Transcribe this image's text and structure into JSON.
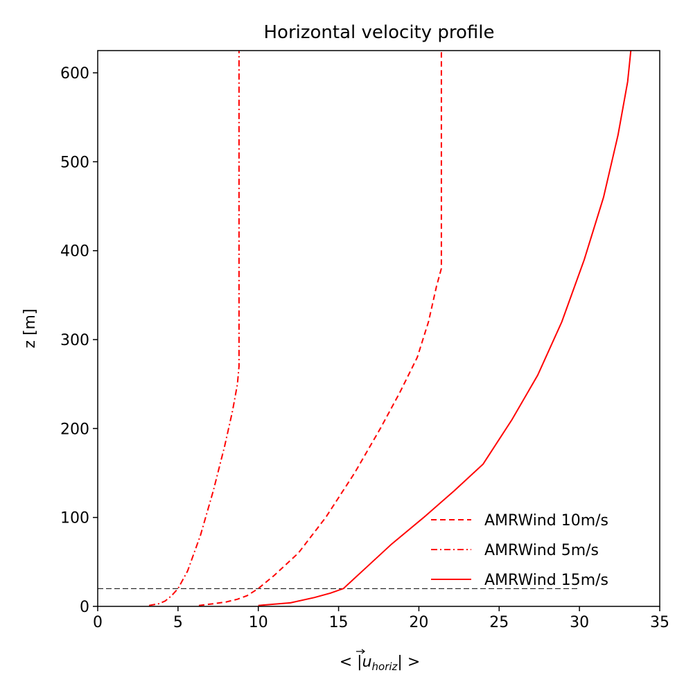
{
  "chart_data": {
    "type": "line",
    "title": "Horizontal velocity profile",
    "xlabel_prefix": "< |",
    "xlabel_vec": "u",
    "xlabel_sub": "horiz",
    "xlabel_suffix": "| >",
    "ylabel": "z [m]",
    "xlim": [
      0,
      35
    ],
    "ylim": [
      0,
      625
    ],
    "xticks": [
      0,
      5,
      10,
      15,
      20,
      25,
      30,
      35
    ],
    "yticks": [
      0,
      100,
      200,
      300,
      400,
      500,
      600
    ],
    "grid": false,
    "legend_position": "lower-right",
    "colors": {
      "series": "#ff0000",
      "reference_line": "#000000"
    },
    "reference_line": {
      "z": 20,
      "x": [
        0,
        30
      ]
    },
    "series": [
      {
        "name": "AMRWind 10m/s",
        "style": "dashed",
        "x": [
          6.3,
          7.2,
          8.0,
          8.7,
          9.3,
          10.0,
          11.0,
          12.5,
          14.2,
          16.0,
          17.6,
          18.8,
          19.9,
          20.6,
          21.1,
          21.4,
          21.4,
          21.4,
          21.4
        ],
        "z": [
          1,
          3,
          5,
          8,
          12,
          20,
          35,
          60,
          100,
          150,
          200,
          240,
          280,
          320,
          360,
          380,
          450,
          550,
          625
        ]
      },
      {
        "name": "AMRWind 5m/s",
        "style": "dashdot",
        "x": [
          3.2,
          3.8,
          4.2,
          4.6,
          5.0,
          5.6,
          6.4,
          7.2,
          7.9,
          8.4,
          8.7,
          8.8,
          8.8,
          8.8
        ],
        "z": [
          1,
          3,
          6,
          12,
          20,
          40,
          80,
          130,
          180,
          220,
          250,
          270,
          400,
          625
        ]
      },
      {
        "name": "AMRWind 15m/s",
        "style": "solid",
        "x": [
          10.0,
          12.0,
          13.5,
          14.5,
          15.3,
          16.5,
          18.3,
          20.3,
          22.2,
          24.0,
          25.8,
          27.4,
          28.9,
          30.3,
          31.5,
          32.4,
          33.0,
          33.2
        ],
        "z": [
          1,
          4,
          10,
          15,
          20,
          40,
          70,
          100,
          130,
          160,
          210,
          260,
          320,
          390,
          460,
          530,
          590,
          625
        ]
      }
    ]
  }
}
